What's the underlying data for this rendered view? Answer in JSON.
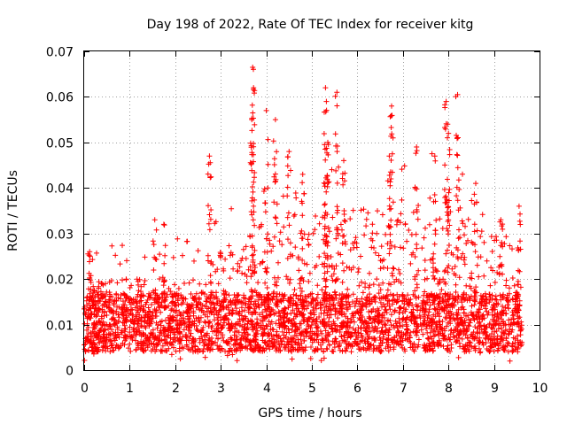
{
  "chart_data": {
    "type": "scatter",
    "title": "Day 198 of 2022, Rate Of TEC Index for receiver kitg",
    "xlabel": "GPS time / hours",
    "ylabel": "ROTI / TECUs",
    "xlim": [
      0,
      10
    ],
    "ylim": [
      0,
      0.07
    ],
    "x_ticks": [
      "0",
      "1",
      "2",
      "3",
      "4",
      "5",
      "6",
      "7",
      "8",
      "9",
      "10"
    ],
    "y_ticks": [
      "0",
      "0.01",
      "0.02",
      "0.03",
      "0.04",
      "0.05",
      "0.06",
      "0.07"
    ],
    "grid": true,
    "marker": "+",
    "color": "#ff0000",
    "series": [
      {
        "name": "ROTI",
        "x_range": [
          0.0,
          9.62
        ],
        "typical_band": [
          0.004,
          0.02
        ],
        "notable_points": [
          {
            "x": 0.12,
            "y": 0.026
          },
          {
            "x": 1.55,
            "y": 0.033
          },
          {
            "x": 1.75,
            "y": 0.032
          },
          {
            "x": 2.75,
            "y": 0.047
          },
          {
            "x": 3.7,
            "y": 0.0665
          },
          {
            "x": 3.72,
            "y": 0.062
          },
          {
            "x": 3.68,
            "y": 0.055
          },
          {
            "x": 4.0,
            "y": 0.057
          },
          {
            "x": 4.2,
            "y": 0.055
          },
          {
            "x": 4.5,
            "y": 0.048
          },
          {
            "x": 4.8,
            "y": 0.043
          },
          {
            "x": 5.3,
            "y": 0.062
          },
          {
            "x": 5.32,
            "y": 0.059
          },
          {
            "x": 5.55,
            "y": 0.061
          },
          {
            "x": 5.35,
            "y": 0.05
          },
          {
            "x": 5.7,
            "y": 0.046
          },
          {
            "x": 6.75,
            "y": 0.058
          },
          {
            "x": 6.7,
            "y": 0.047
          },
          {
            "x": 7.3,
            "y": 0.049
          },
          {
            "x": 7.7,
            "y": 0.047
          },
          {
            "x": 7.95,
            "y": 0.059
          },
          {
            "x": 8.2,
            "y": 0.0605
          },
          {
            "x": 8.0,
            "y": 0.052
          },
          {
            "x": 8.6,
            "y": 0.041
          },
          {
            "x": 9.15,
            "y": 0.033
          },
          {
            "x": 9.55,
            "y": 0.036
          },
          {
            "x": 9.35,
            "y": 0.002
          }
        ]
      }
    ]
  }
}
